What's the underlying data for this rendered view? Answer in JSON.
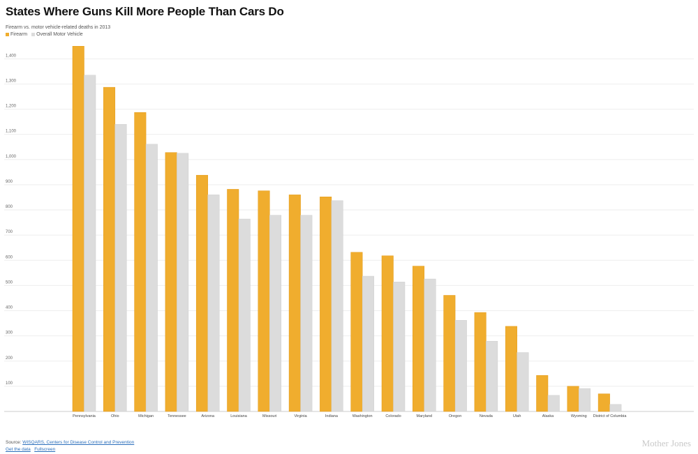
{
  "title": "States Where Guns Kill More People Than Cars Do",
  "subtitle": "Firearm vs. motor vehicle-related deaths in 2013",
  "colors": {
    "firearm": "#f0ad2e",
    "motor": "#dcdcdc",
    "grid": "#eeeeee"
  },
  "footer": {
    "source_prefix": "Source: ",
    "source_link": "WISQARS, Centers for Disease Control and Prevention",
    "get_data": "Get the data",
    "fullscreen": "Fullscreen",
    "brand": "Mother Jones"
  },
  "chart_data": {
    "type": "bar",
    "title": "States Where Guns Kill More People Than Cars Do",
    "subtitle": "Firearm vs. motor vehicle-related deaths in 2013",
    "legend": "top-left",
    "grid": true,
    "ylim": [
      0,
      1500
    ],
    "yticks": [
      100,
      200,
      300,
      400,
      500,
      600,
      700,
      800,
      900,
      1000,
      1100,
      1200,
      1300,
      1400
    ],
    "ytick_labels": [
      "100",
      "200",
      "300",
      "400",
      "500",
      "600",
      "700",
      "800",
      "900",
      "1,000",
      "1,100",
      "1,200",
      "1,300",
      "1,400"
    ],
    "categories": [
      "Pennsylvania",
      "Ohio",
      "Michigan",
      "Tennessee",
      "Arizona",
      "Louisiana",
      "Missouri",
      "Virginia",
      "Indiana",
      "Washington",
      "Colorado",
      "Maryland",
      "Oregon",
      "Nevada",
      "Utah",
      "Alaska",
      "Wyoming",
      "District of Columbia"
    ],
    "series": [
      {
        "name": "Firearm",
        "values": [
          1450,
          1287,
          1187,
          1028,
          938,
          882,
          876,
          860,
          852,
          632,
          618,
          577,
          461,
          393,
          338,
          143,
          100,
          70
        ]
      },
      {
        "name": "Overall Motor Vehicle",
        "values": [
          1335,
          1140,
          1061,
          1025,
          860,
          764,
          779,
          779,
          837,
          537,
          514,
          526,
          362,
          279,
          234,
          64,
          91,
          28
        ]
      }
    ]
  }
}
